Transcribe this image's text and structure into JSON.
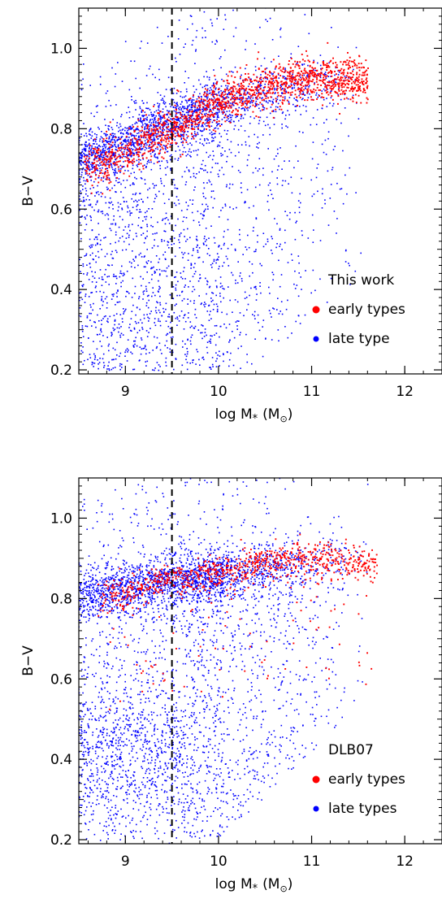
{
  "chart_data": [
    {
      "type": "scatter",
      "title": "",
      "xlabel": "log M",
      "xlabel_subscript": "*",
      "xlabel_unit_open": "(M",
      "xlabel_unit_sub": "⊙",
      "xlabel_unit_close": ")",
      "ylabel": "B−V",
      "xlim": [
        8.5,
        12.4
      ],
      "ylim": [
        0.19,
        1.1
      ],
      "xticks": [
        9,
        10,
        11,
        12
      ],
      "xtick_labels": [
        "9",
        "10",
        "11",
        "12"
      ],
      "yticks": [
        0.2,
        0.4,
        0.6,
        0.8,
        1.0
      ],
      "ytick_labels": [
        "0.2",
        "0.4",
        "0.6",
        "0.8",
        "1.0"
      ],
      "vline_x": 9.5,
      "legend": {
        "placement": "bottom-right",
        "heading": "This work",
        "entries": [
          {
            "label": "early types",
            "color": "#ff0000"
          },
          {
            "label": "late type",
            "color": "#0000ff"
          }
        ]
      },
      "series": [
        {
          "name": "late type",
          "color": "#0000ff",
          "ridge": [
            [
              8.5,
              0.72
            ],
            [
              9.0,
              0.77
            ],
            [
              9.5,
              0.82
            ],
            [
              10.0,
              0.86
            ],
            [
              10.5,
              0.89
            ],
            [
              11.0,
              0.91
            ],
            [
              11.5,
              0.92
            ]
          ],
          "spread_max_x": 11.6
        },
        {
          "name": "early types",
          "color": "#ff0000",
          "ridge": [
            [
              8.6,
              0.71
            ],
            [
              9.0,
              0.74
            ],
            [
              9.5,
              0.8
            ],
            [
              10.0,
              0.87
            ],
            [
              10.5,
              0.91
            ],
            [
              11.0,
              0.93
            ],
            [
              11.6,
              0.92
            ]
          ],
          "x_range": [
            8.55,
            11.6
          ]
        }
      ]
    },
    {
      "type": "scatter",
      "title": "",
      "xlabel": "log M",
      "xlabel_subscript": "*",
      "xlabel_unit_open": "(M",
      "xlabel_unit_sub": "⊙",
      "xlabel_unit_close": ")",
      "ylabel": "B−V",
      "xlim": [
        8.5,
        12.4
      ],
      "ylim": [
        0.19,
        1.1
      ],
      "xticks": [
        9,
        10,
        11,
        12
      ],
      "xtick_labels": [
        "9",
        "10",
        "11",
        "12"
      ],
      "yticks": [
        0.2,
        0.4,
        0.6,
        0.8,
        1.0
      ],
      "ytick_labels": [
        "0.2",
        "0.4",
        "0.6",
        "0.8",
        "1.0"
      ],
      "vline_x": 9.5,
      "legend": {
        "placement": "bottom-right",
        "heading": "DLB07",
        "entries": [
          {
            "label": "early types",
            "color": "#ff0000"
          },
          {
            "label": "late types",
            "color": "#0000ff"
          }
        ]
      },
      "series": [
        {
          "name": "late types",
          "color": "#0000ff",
          "ridge": [
            [
              8.5,
              0.8
            ],
            [
              9.0,
              0.83
            ],
            [
              9.5,
              0.85
            ],
            [
              10.0,
              0.86
            ],
            [
              10.5,
              0.88
            ],
            [
              11.0,
              0.89
            ],
            [
              11.5,
              0.9
            ]
          ],
          "spread_max_x": 11.6
        },
        {
          "name": "early types",
          "color": "#ff0000",
          "ridge": [
            [
              8.7,
              0.8
            ],
            [
              9.0,
              0.82
            ],
            [
              9.5,
              0.85
            ],
            [
              10.0,
              0.87
            ],
            [
              10.5,
              0.89
            ],
            [
              11.0,
              0.9
            ],
            [
              11.6,
              0.89
            ]
          ],
          "x_range": [
            8.7,
            11.7
          ]
        }
      ]
    }
  ]
}
